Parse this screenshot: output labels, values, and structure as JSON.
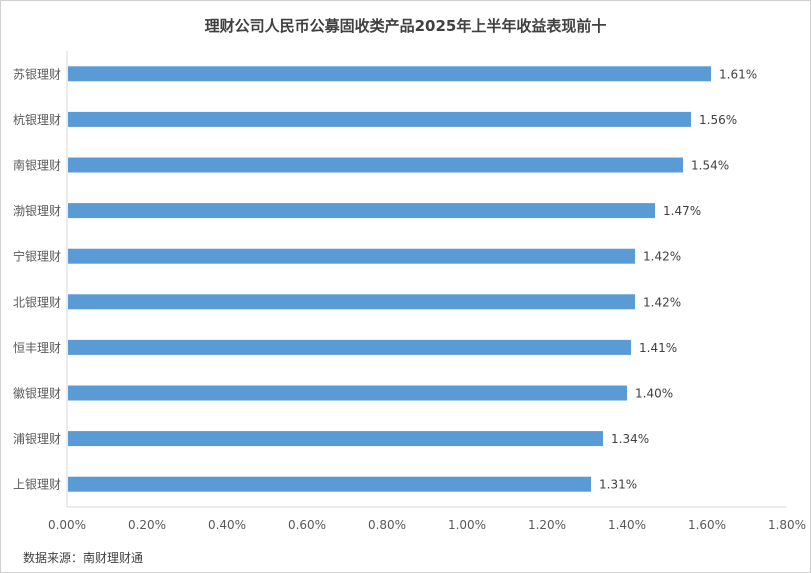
{
  "chart_data": {
    "type": "bar",
    "orientation": "horizontal",
    "title": "理财公司人民币公募固收类产品2025年上半年收益表现前十",
    "categories": [
      "苏银理财",
      "杭银理财",
      "南银理财",
      "渤银理财",
      "宁银理财",
      "北银理财",
      "恒丰理财",
      "徽银理财",
      "浦银理财",
      "上银理财"
    ],
    "values": [
      1.61,
      1.56,
      1.54,
      1.47,
      1.42,
      1.42,
      1.41,
      1.4,
      1.34,
      1.31
    ],
    "data_labels": [
      "1.61%",
      "1.56%",
      "1.54%",
      "1.47%",
      "1.42%",
      "1.42%",
      "1.41%",
      "1.40%",
      "1.34%",
      "1.31%"
    ],
    "x_ticks": [
      "0.00%",
      "0.20%",
      "0.40%",
      "0.60%",
      "0.80%",
      "1.00%",
      "1.20%",
      "1.40%",
      "1.60%",
      "1.80%"
    ],
    "xlim": [
      0,
      1.8
    ],
    "grid": false,
    "bar_color": "#5b9bd5"
  },
  "source": "数据来源：南财理财通"
}
